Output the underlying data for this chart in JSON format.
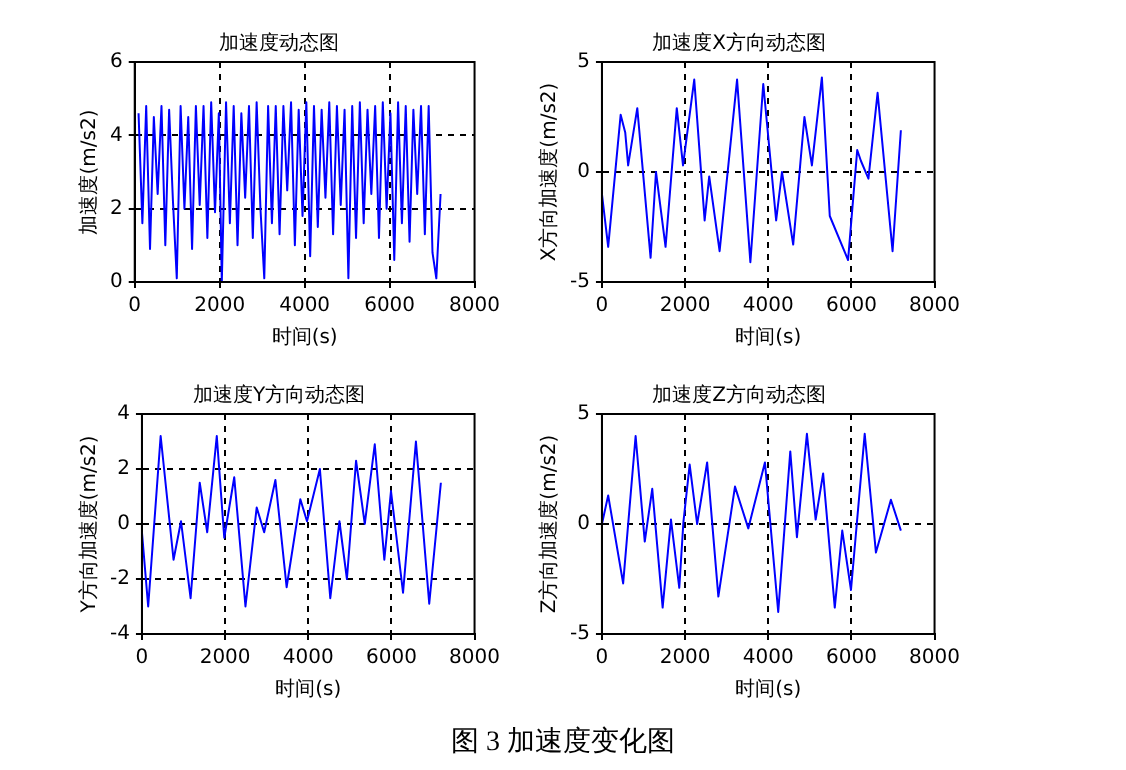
{
  "chart_data": [
    {
      "type": "line",
      "title": "加速度动态图",
      "xlabel": "时间(s)",
      "ylabel": "加速度(m/s2)",
      "color": "#0000ff",
      "grid": true,
      "xlim": [
        0,
        8000
      ],
      "xticks": [
        0,
        2000,
        4000,
        6000,
        8000
      ],
      "ylim": [
        0,
        6
      ],
      "yticks": [
        0,
        2,
        4,
        6
      ],
      "x": [
        90,
        180,
        270,
        360,
        450,
        540,
        630,
        720,
        810,
        900,
        990,
        1080,
        1170,
        1260,
        1350,
        1440,
        1530,
        1620,
        1710,
        1800,
        1890,
        1980,
        2050,
        2150,
        2240,
        2330,
        2420,
        2510,
        2600,
        2690,
        2780,
        2870,
        2960,
        3050,
        3140,
        3230,
        3320,
        3410,
        3500,
        3590,
        3680,
        3770,
        3860,
        3950,
        4040,
        4130,
        4220,
        4310,
        4400,
        4490,
        4580,
        4670,
        4760,
        4850,
        4940,
        5030,
        5120,
        5210,
        5300,
        5390,
        5480,
        5570,
        5660,
        5750,
        5840,
        5930,
        6020,
        6110,
        6200,
        6290,
        6380,
        6470,
        6560,
        6650,
        6740,
        6830,
        6920,
        7010,
        7100,
        7200
      ],
      "values": [
        4.6,
        1.6,
        4.8,
        0.9,
        4.5,
        2.4,
        4.8,
        1.0,
        4.7,
        2.2,
        0.1,
        4.8,
        2.0,
        4.5,
        0.9,
        4.8,
        2.1,
        4.8,
        1.2,
        4.9,
        1.9,
        4.6,
        0.0,
        4.9,
        1.6,
        4.8,
        1.0,
        4.6,
        2.3,
        4.8,
        1.2,
        4.9,
        2.0,
        0.1,
        4.8,
        1.6,
        4.8,
        1.3,
        4.8,
        2.5,
        4.9,
        1.0,
        4.7,
        1.8,
        4.9,
        0.7,
        4.8,
        1.5,
        4.7,
        2.3,
        4.9,
        1.3,
        4.8,
        2.1,
        4.7,
        0.1,
        4.8,
        1.2,
        4.9,
        1.6,
        4.7,
        2.4,
        4.8,
        1.2,
        4.9,
        2.0,
        4.6,
        0.6,
        4.9,
        1.6,
        4.8,
        1.1,
        4.7,
        2.4,
        4.8,
        1.3,
        4.8,
        0.8,
        0.1,
        2.4
      ]
    },
    {
      "type": "line",
      "title": "加速度X方向动态图",
      "xlabel": "时间(s)",
      "ylabel": "X方向加速度(m/s2)",
      "color": "#0000ff",
      "grid": true,
      "xlim": [
        0,
        8000
      ],
      "xticks": [
        0,
        2000,
        4000,
        6000,
        8000
      ],
      "ylim": [
        -5,
        5
      ],
      "yticks": [
        -5,
        0,
        5
      ],
      "x": [
        0,
        150,
        450,
        560,
        630,
        850,
        1170,
        1300,
        1530,
        1800,
        1950,
        2220,
        2470,
        2580,
        2830,
        3250,
        3570,
        3880,
        4190,
        4330,
        4600,
        4870,
        5050,
        5290,
        5480,
        5920,
        6140,
        6230,
        6410,
        6630,
        6990,
        7190
      ],
      "values": [
        -1.0,
        -3.4,
        2.6,
        1.8,
        0.3,
        2.9,
        -3.9,
        0.0,
        -3.4,
        2.9,
        0.3,
        4.2,
        -2.2,
        -0.2,
        -3.6,
        4.2,
        -4.1,
        4.0,
        -2.2,
        0.0,
        -3.3,
        2.5,
        0.3,
        4.3,
        -2.0,
        -4.0,
        1.0,
        0.5,
        -0.3,
        3.6,
        -3.6,
        1.9
      ]
    },
    {
      "type": "line",
      "title": "加速度Y方向动态图",
      "xlabel": "时间(s)",
      "ylabel": "Y方向加速度(m/s2)",
      "color": "#0000ff",
      "grid": true,
      "xlim": [
        0,
        8000
      ],
      "xticks": [
        0,
        2000,
        4000,
        6000,
        8000
      ],
      "ylim": [
        -4,
        4
      ],
      "yticks": [
        -4,
        -2,
        0,
        2,
        4
      ],
      "x": [
        0,
        150,
        450,
        760,
        940,
        1170,
        1390,
        1570,
        1800,
        1980,
        2220,
        2490,
        2760,
        2940,
        3210,
        3480,
        3810,
        3970,
        4280,
        4530,
        4750,
        4930,
        5150,
        5360,
        5600,
        5830,
        5990,
        6280,
        6590,
        6910,
        7190
      ],
      "values": [
        -0.3,
        -3.0,
        3.2,
        -1.3,
        0.1,
        -2.7,
        1.5,
        -0.3,
        3.2,
        -0.5,
        1.7,
        -3.0,
        0.6,
        -0.3,
        1.6,
        -2.3,
        0.9,
        0.1,
        2.0,
        -2.7,
        0.1,
        -2.0,
        2.3,
        0.0,
        2.9,
        -1.3,
        1.2,
        -2.5,
        3.0,
        -2.9,
        1.5
      ]
    },
    {
      "type": "line",
      "title": "加速度Z方向动态图",
      "xlabel": "时间(s)",
      "ylabel": "Z方向加速度(m/s2)",
      "color": "#0000ff",
      "grid": true,
      "xlim": [
        0,
        8000
      ],
      "xticks": [
        0,
        2000,
        4000,
        6000,
        8000
      ],
      "ylim": [
        -5,
        5
      ],
      "yticks": [
        -5,
        0,
        5
      ],
      "annotations": [
        "图 3  加速度变化图"
      ],
      "x": [
        0,
        150,
        510,
        810,
        1030,
        1210,
        1460,
        1660,
        1860,
        1960,
        2110,
        2290,
        2530,
        2800,
        3200,
        3520,
        3920,
        4240,
        4530,
        4690,
        4930,
        5140,
        5320,
        5600,
        5780,
        5990,
        6320,
        6590,
        6950,
        7190
      ],
      "values": [
        0.0,
        1.3,
        -2.7,
        4.0,
        -0.8,
        1.6,
        -3.8,
        0.2,
        -2.9,
        0.1,
        2.7,
        0.0,
        2.8,
        -3.3,
        1.7,
        -0.2,
        2.8,
        -4.0,
        3.3,
        -0.6,
        4.1,
        0.2,
        2.3,
        -3.8,
        -0.3,
        -3.0,
        4.1,
        -1.3,
        1.1,
        -0.3
      ]
    }
  ]
}
